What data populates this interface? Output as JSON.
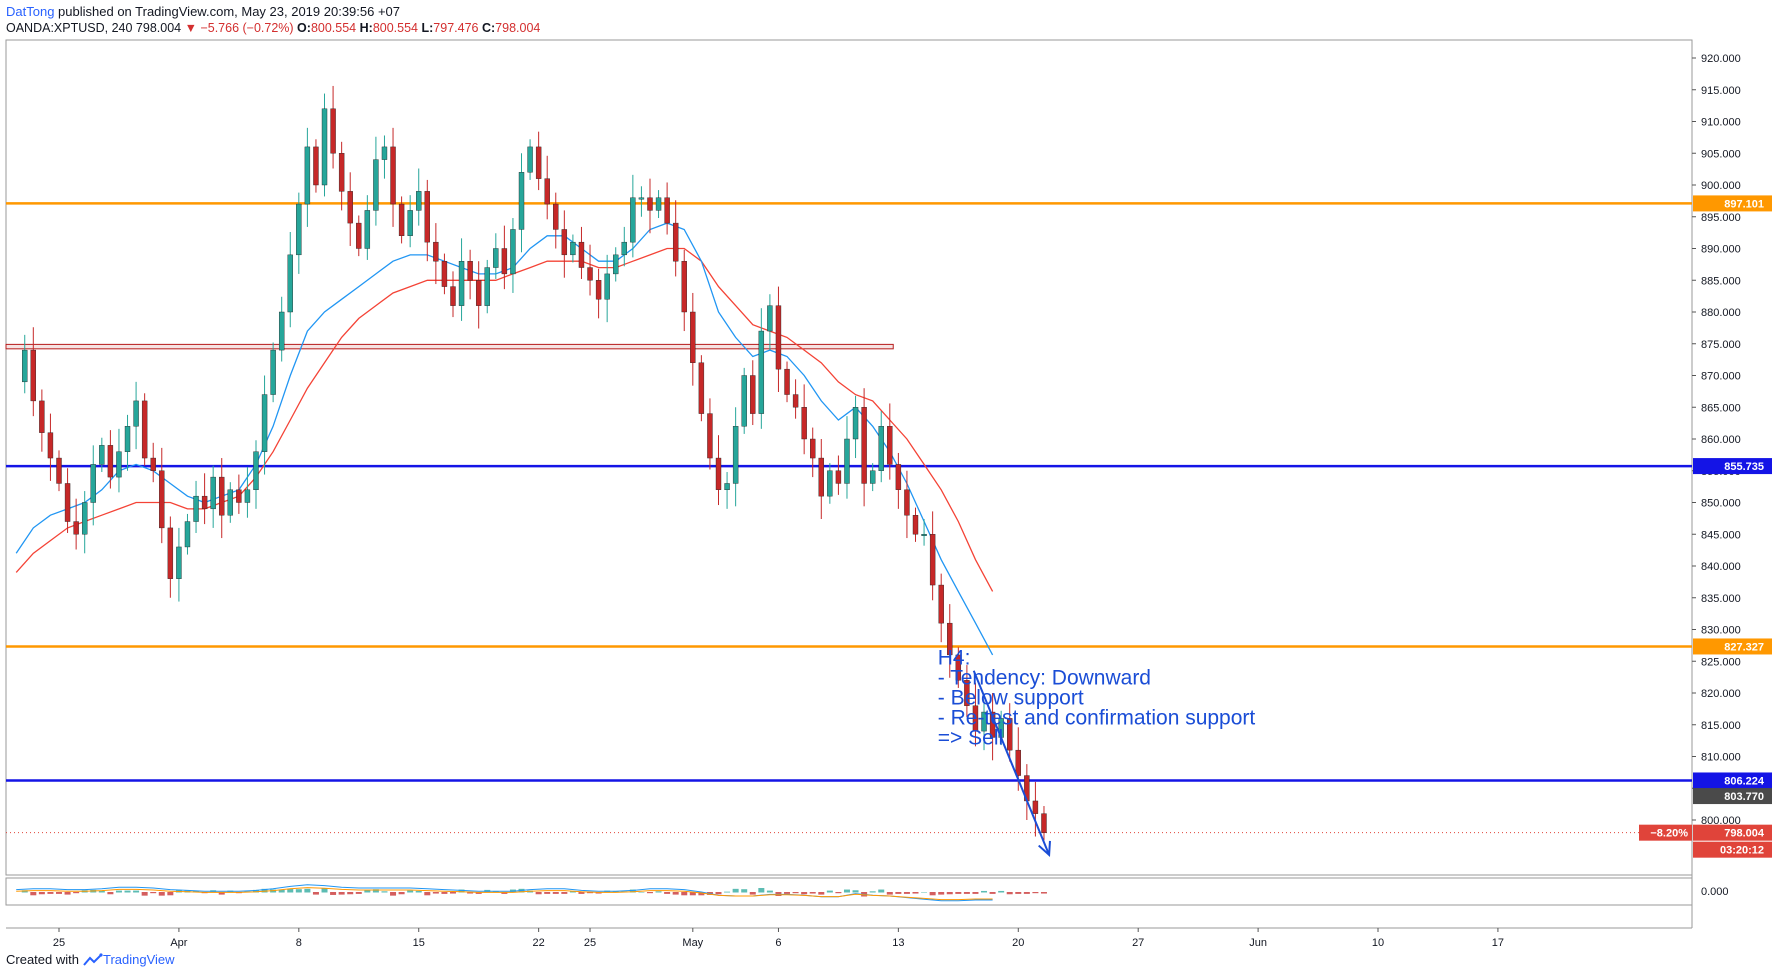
{
  "header": {
    "author": "DatTong",
    "published": "published on TradingView.com, May 23, 2019 20:39:56 +07",
    "symbol": "OANDA:XPTUSD, 240",
    "last": "798.004",
    "change": "▼ −5.766 (−0.72%)",
    "o_label": "O:",
    "o": "800.554",
    "h_label": "H:",
    "h": "800.554",
    "l_label": "L:",
    "l": "797.476",
    "c_label": "C:",
    "c": "798.004"
  },
  "footer": {
    "created": "Created with",
    "brand": "TradingView"
  },
  "colors": {
    "orange": "#ff9800",
    "blue": "#1414e6",
    "up": "#26a69a",
    "down": "#c62828",
    "ma_fast": "#2196f3",
    "ma_slow": "#f44336",
    "box": "#b71c1c",
    "note": "#1a4dd6"
  },
  "chart_data": {
    "type": "candlestick",
    "ylim": [
      795,
      921
    ],
    "y_ticks": [
      "800.000",
      "805.000",
      "810.000",
      "815.000",
      "820.000",
      "825.000",
      "830.000",
      "835.000",
      "840.000",
      "845.000",
      "850.000",
      "855.000",
      "860.000",
      "865.000",
      "870.000",
      "875.000",
      "880.000",
      "885.000",
      "890.000",
      "895.000",
      "900.000",
      "905.000",
      "910.000",
      "915.000",
      "920.000"
    ],
    "x_ticks": [
      {
        "day": 0,
        "label": "25"
      },
      {
        "day": 7,
        "label": "Apr"
      },
      {
        "day": 14,
        "label": "8"
      },
      {
        "day": 21,
        "label": "15"
      },
      {
        "day": 28,
        "label": "22"
      },
      {
        "day": 31,
        "label": "25"
      },
      {
        "day": 37,
        "label": "May"
      },
      {
        "day": 42,
        "label": "6"
      },
      {
        "day": 49,
        "label": "13"
      },
      {
        "day": 56,
        "label": "20"
      },
      {
        "day": 63,
        "label": "27"
      },
      {
        "day": 70,
        "label": "Jun"
      },
      {
        "day": 77,
        "label": "10"
      },
      {
        "day": 84,
        "label": "17"
      }
    ],
    "horizontal_levels": [
      {
        "name": "resistance-1",
        "value": 897.101,
        "label": "897.101",
        "color": "#ff9800"
      },
      {
        "name": "support-1",
        "value": 855.735,
        "label": "855.735",
        "color": "#1414e6"
      },
      {
        "name": "resistance-2",
        "value": 827.327,
        "label": "827.327",
        "color": "#ff9800"
      },
      {
        "name": "support-2",
        "value": 806.224,
        "label": "806.224",
        "color": "#1414e6"
      }
    ],
    "other_price_labels": [
      {
        "value": 803.77,
        "label": "803.770",
        "color": "#4a4a4a"
      }
    ],
    "current_price": {
      "value": 798.004,
      "label": "798.004",
      "change_pct": "−8.20%",
      "countdown": "03:20:12",
      "color": "#e0443a"
    },
    "zone_box": {
      "y_top": 874.9,
      "y_bottom": 874.2,
      "day_start": -2.5,
      "day_end": 48.7
    },
    "closes": [
      [
        -2.5,
        869
      ],
      [
        -2.0,
        874
      ],
      [
        -1.5,
        866
      ],
      [
        -1.0,
        861
      ],
      [
        -0.5,
        857
      ],
      [
        0.0,
        853
      ],
      [
        0.5,
        847
      ],
      [
        1.0,
        845
      ],
      [
        1.5,
        850
      ],
      [
        2.0,
        856
      ],
      [
        2.5,
        859
      ],
      [
        3.0,
        854
      ],
      [
        3.5,
        858
      ],
      [
        4.0,
        862
      ],
      [
        4.5,
        866
      ],
      [
        5.0,
        857
      ],
      [
        5.5,
        855
      ],
      [
        6.0,
        846
      ],
      [
        6.5,
        838
      ],
      [
        7.0,
        843
      ],
      [
        7.5,
        847
      ],
      [
        8.0,
        851
      ],
      [
        8.5,
        849
      ],
      [
        9.0,
        854
      ],
      [
        9.5,
        848
      ],
      [
        10.0,
        852
      ],
      [
        10.5,
        850
      ],
      [
        11.0,
        852
      ],
      [
        11.5,
        858
      ],
      [
        12.0,
        867
      ],
      [
        12.5,
        874
      ],
      [
        13.0,
        880
      ],
      [
        13.5,
        889
      ],
      [
        14.0,
        897
      ],
      [
        14.5,
        906
      ],
      [
        15.0,
        900
      ],
      [
        15.5,
        912
      ],
      [
        16.0,
        905
      ],
      [
        16.5,
        899
      ],
      [
        17.0,
        894
      ],
      [
        17.5,
        890
      ],
      [
        18.0,
        896
      ],
      [
        18.5,
        904
      ],
      [
        19.0,
        906
      ],
      [
        19.5,
        897
      ],
      [
        20.0,
        892
      ],
      [
        20.5,
        896
      ],
      [
        21.0,
        899
      ],
      [
        21.5,
        891
      ],
      [
        22.0,
        888
      ],
      [
        22.5,
        884
      ],
      [
        23.0,
        881
      ],
      [
        23.5,
        888
      ],
      [
        24.0,
        885
      ],
      [
        24.5,
        881
      ],
      [
        25.0,
        887
      ],
      [
        25.5,
        890
      ],
      [
        26.0,
        886
      ],
      [
        26.5,
        893
      ],
      [
        27.0,
        902
      ],
      [
        27.5,
        906
      ],
      [
        28.0,
        901
      ],
      [
        28.5,
        897
      ],
      [
        29.0,
        893
      ],
      [
        29.5,
        889
      ],
      [
        30.0,
        891
      ],
      [
        30.5,
        887
      ],
      [
        31.0,
        885
      ],
      [
        31.5,
        882
      ],
      [
        32.0,
        886
      ],
      [
        32.5,
        889
      ],
      [
        33.0,
        891
      ],
      [
        33.5,
        898
      ],
      [
        34.0,
        898
      ],
      [
        34.5,
        896
      ],
      [
        35.0,
        898
      ],
      [
        35.5,
        894
      ],
      [
        36.0,
        888
      ],
      [
        36.5,
        880
      ],
      [
        37.0,
        872
      ],
      [
        37.5,
        864
      ],
      [
        38.0,
        857
      ],
      [
        38.5,
        852
      ],
      [
        39.0,
        853
      ],
      [
        39.5,
        862
      ],
      [
        40.0,
        870
      ],
      [
        40.5,
        864
      ],
      [
        41.0,
        877
      ],
      [
        41.5,
        881
      ],
      [
        42.0,
        871
      ],
      [
        42.5,
        867
      ],
      [
        43.0,
        865
      ],
      [
        43.5,
        860
      ],
      [
        44.0,
        857
      ],
      [
        44.5,
        851
      ],
      [
        45.0,
        855
      ],
      [
        45.5,
        853
      ],
      [
        46.0,
        860
      ],
      [
        46.5,
        865
      ],
      [
        47.0,
        853
      ],
      [
        47.5,
        855
      ],
      [
        48.0,
        862
      ],
      [
        48.5,
        856
      ],
      [
        49.0,
        852
      ],
      [
        49.5,
        848
      ],
      [
        50.0,
        845
      ],
      [
        50.5,
        845
      ],
      [
        51.0,
        837
      ],
      [
        51.5,
        831
      ],
      [
        52.0,
        826
      ],
      [
        52.5,
        822
      ],
      [
        53.0,
        818
      ],
      [
        53.5,
        814
      ],
      [
        54.0,
        817
      ],
      [
        54.5,
        813
      ],
      [
        55.0,
        816
      ],
      [
        55.5,
        811
      ],
      [
        56.0,
        807
      ],
      [
        56.5,
        803
      ],
      [
        57.0,
        801
      ],
      [
        57.5,
        798.004
      ]
    ],
    "ma_fast": [
      [
        -2.5,
        842
      ],
      [
        -1.5,
        846
      ],
      [
        -0.5,
        848
      ],
      [
        0.5,
        849
      ],
      [
        1.5,
        850
      ],
      [
        2.5,
        852
      ],
      [
        3.5,
        855
      ],
      [
        4.5,
        856
      ],
      [
        5.5,
        855
      ],
      [
        6.5,
        853
      ],
      [
        7.5,
        851
      ],
      [
        8.5,
        850
      ],
      [
        9.5,
        851
      ],
      [
        10.5,
        852
      ],
      [
        11.5,
        856
      ],
      [
        12.5,
        862
      ],
      [
        13.5,
        870
      ],
      [
        14.5,
        877
      ],
      [
        15.5,
        880
      ],
      [
        16.5,
        882
      ],
      [
        17.5,
        884
      ],
      [
        18.5,
        886
      ],
      [
        19.5,
        888
      ],
      [
        20.5,
        889
      ],
      [
        21.5,
        889
      ],
      [
        22.5,
        888
      ],
      [
        23.5,
        887
      ],
      [
        24.5,
        886
      ],
      [
        25.5,
        886
      ],
      [
        26.5,
        887
      ],
      [
        27.5,
        890
      ],
      [
        28.5,
        892
      ],
      [
        29.5,
        892
      ],
      [
        30.5,
        890
      ],
      [
        31.5,
        888
      ],
      [
        32.5,
        888
      ],
      [
        33.5,
        890
      ],
      [
        34.5,
        893
      ],
      [
        35.5,
        894
      ],
      [
        36.5,
        893
      ],
      [
        37.5,
        888
      ],
      [
        38.5,
        880
      ],
      [
        39.5,
        876
      ],
      [
        40.5,
        873
      ],
      [
        41.5,
        874
      ],
      [
        42.5,
        873
      ],
      [
        43.5,
        870
      ],
      [
        44.5,
        866
      ],
      [
        45.5,
        863
      ],
      [
        46.5,
        865
      ],
      [
        47.5,
        862
      ],
      [
        48.5,
        858
      ],
      [
        49.5,
        853
      ],
      [
        50.5,
        847
      ],
      [
        51.5,
        841
      ],
      [
        52.5,
        836
      ],
      [
        53.5,
        831
      ],
      [
        54.5,
        826
      ]
    ],
    "ma_slow": [
      [
        -2.5,
        839
      ],
      [
        -1.5,
        842
      ],
      [
        -0.5,
        844
      ],
      [
        0.5,
        846
      ],
      [
        1.5,
        847
      ],
      [
        2.5,
        848
      ],
      [
        3.5,
        849
      ],
      [
        4.5,
        850
      ],
      [
        5.5,
        850
      ],
      [
        6.5,
        850
      ],
      [
        7.5,
        849
      ],
      [
        8.5,
        849
      ],
      [
        9.5,
        850
      ],
      [
        10.5,
        851
      ],
      [
        11.5,
        854
      ],
      [
        12.5,
        858
      ],
      [
        13.5,
        863
      ],
      [
        14.5,
        868
      ],
      [
        15.5,
        872
      ],
      [
        16.5,
        876
      ],
      [
        17.5,
        879
      ],
      [
        18.5,
        881
      ],
      [
        19.5,
        883
      ],
      [
        20.5,
        884
      ],
      [
        21.5,
        885
      ],
      [
        22.5,
        885
      ],
      [
        23.5,
        885
      ],
      [
        24.5,
        885
      ],
      [
        25.5,
        885
      ],
      [
        26.5,
        886
      ],
      [
        27.5,
        887
      ],
      [
        28.5,
        888
      ],
      [
        29.5,
        888
      ],
      [
        30.5,
        888
      ],
      [
        31.5,
        887
      ],
      [
        32.5,
        887
      ],
      [
        33.5,
        888
      ],
      [
        34.5,
        889
      ],
      [
        35.5,
        890
      ],
      [
        36.5,
        890
      ],
      [
        37.5,
        888
      ],
      [
        38.5,
        884
      ],
      [
        39.5,
        881
      ],
      [
        40.5,
        878
      ],
      [
        41.5,
        877
      ],
      [
        42.5,
        876
      ],
      [
        43.5,
        874
      ],
      [
        44.5,
        872
      ],
      [
        45.5,
        869
      ],
      [
        46.5,
        867
      ],
      [
        47.5,
        866
      ],
      [
        48.5,
        863
      ],
      [
        49.5,
        860
      ],
      [
        50.5,
        856
      ],
      [
        51.5,
        852
      ],
      [
        52.5,
        847
      ],
      [
        53.5,
        841
      ],
      [
        54.5,
        836
      ]
    ],
    "annotation": {
      "lines": [
        "H4:",
        "- Tendency: Downward",
        "- Below support",
        "- Re-test and confirmation support",
        "=> Sell"
      ],
      "day": 51.3,
      "price": 824.5
    },
    "arrow": {
      "from": [
        53.4,
        823.5
      ],
      "to": [
        57.8,
        794.5
      ]
    },
    "indicator": {
      "y_tick": "0.000"
    }
  }
}
